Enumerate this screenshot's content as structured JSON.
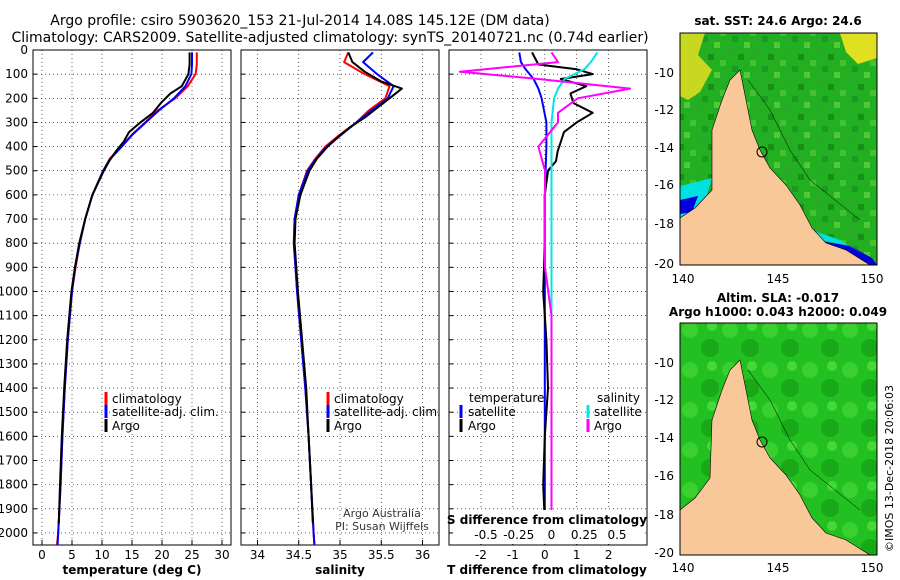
{
  "header": {
    "title_line1": "Argo profile: csiro 5903620_153 21-Jul-2014 14.08S 145.12E (DM data)",
    "title_line2": "Climatology: CARS2009. Satellite-adjusted climatology: synTS_20140721.nc (0.74d earlier)"
  },
  "colors": {
    "climatology": "#ff0000",
    "satellite": "#0000ff",
    "argo": "#000000",
    "sal_satellite": "#00e5e5",
    "sal_argo": "#ff00ff",
    "land": "#f8c898",
    "ocean": "#22b022"
  },
  "depth_axis": {
    "ylim": [
      0,
      2050
    ],
    "ticks": [
      0,
      100,
      200,
      300,
      400,
      500,
      600,
      700,
      800,
      900,
      1000,
      1100,
      1200,
      1300,
      1400,
      1500,
      1600,
      1700,
      1800,
      1900,
      2000
    ],
    "tick_labels": [
      "0",
      "100",
      "200",
      "300",
      "400",
      "500",
      "600",
      "700",
      "800",
      "900",
      "1000",
      "1100",
      "1200",
      "1300",
      "1400",
      "1500",
      "1600",
      "1700",
      "1800",
      "1900",
      "2000"
    ]
  },
  "chart_data": [
    {
      "type": "line",
      "id": "temperature",
      "xlabel": "temperature (deg C)",
      "xlim": [
        -1.5,
        31.5
      ],
      "xticks": [
        0,
        5,
        10,
        15,
        20,
        25,
        30
      ],
      "xtick_labels": [
        "0",
        "5",
        "10",
        "15",
        "20",
        "25",
        "30"
      ],
      "legend": [
        "climatology",
        "satellite-adj. clim.",
        "Argo"
      ],
      "series": [
        {
          "name": "climatology",
          "color": "#ff0000",
          "depth": [
            10,
            60,
            100,
            150,
            200,
            250,
            300,
            350,
            400,
            450,
            500,
            600,
            700,
            800,
            900,
            1000,
            1200,
            1400,
            1600,
            1800,
            2000,
            2050
          ],
          "values": [
            25.8,
            25.8,
            25.6,
            24.3,
            22.2,
            19.3,
            17.2,
            15.0,
            13.2,
            11.3,
            10.2,
            8.4,
            7.2,
            6.3,
            5.6,
            5.0,
            4.3,
            3.8,
            3.4,
            3.1,
            2.7,
            2.5
          ]
        },
        {
          "name": "satellite-adj. clim.",
          "color": "#0000ff",
          "depth": [
            10,
            60,
            100,
            150,
            200,
            250,
            300,
            350,
            400,
            450,
            500,
            600,
            700,
            800,
            900,
            1000,
            1200,
            1400,
            1600,
            1800,
            2000,
            2050
          ],
          "values": [
            25.0,
            25.0,
            24.9,
            23.9,
            22.0,
            19.5,
            17.3,
            15.1,
            13.3,
            11.4,
            10.2,
            8.4,
            7.2,
            6.3,
            5.5,
            5.0,
            4.3,
            3.8,
            3.4,
            3.1,
            2.7,
            2.6
          ]
        },
        {
          "name": "Argo",
          "color": "#000000",
          "depth": [
            10,
            60,
            100,
            150,
            180,
            220,
            260,
            300,
            340,
            380,
            420,
            460,
            500,
            600,
            700,
            800,
            900,
            1000,
            1200,
            1400,
            1600,
            1800,
            1960
          ],
          "values": [
            24.6,
            24.6,
            24.4,
            23.3,
            21.4,
            19.8,
            18.5,
            16.4,
            14.5,
            13.6,
            12.3,
            11.2,
            10.3,
            8.4,
            7.2,
            6.2,
            5.5,
            4.9,
            4.2,
            3.7,
            3.3,
            3.0,
            2.8
          ]
        }
      ]
    },
    {
      "type": "line",
      "id": "salinity",
      "xlabel": "salinity",
      "xlim": [
        33.8,
        36.2
      ],
      "xticks": [
        34,
        34.5,
        35,
        35.5,
        36
      ],
      "xtick_labels": [
        "34",
        "34.5",
        "35",
        "35.5",
        "36"
      ],
      "legend": [
        "climatology",
        "satellite-adj. clim.",
        "Argo"
      ],
      "annotation": [
        "Argo Australia",
        "PI: Susan Wijffels"
      ],
      "series": [
        {
          "name": "climatology",
          "color": "#ff0000",
          "depth": [
            10,
            50,
            100,
            150,
            200,
            250,
            300,
            350,
            400,
            450,
            500,
            600,
            700,
            800,
            900,
            1000,
            1200,
            1400,
            1600,
            1800,
            2000,
            2050
          ],
          "values": [
            35.1,
            35.05,
            35.3,
            35.6,
            35.55,
            35.35,
            35.2,
            35.0,
            34.82,
            34.7,
            34.6,
            34.5,
            34.45,
            34.44,
            34.46,
            34.48,
            34.53,
            34.58,
            34.62,
            34.65,
            34.68,
            34.69
          ]
        },
        {
          "name": "satellite-adj. clim.",
          "color": "#0000ff",
          "depth": [
            10,
            50,
            100,
            150,
            200,
            250,
            300,
            350,
            400,
            450,
            500,
            600,
            700,
            800,
            900,
            1000,
            1200,
            1400,
            1600,
            1800,
            2000,
            2050
          ],
          "values": [
            35.4,
            35.28,
            35.45,
            35.65,
            35.58,
            35.38,
            35.2,
            35.02,
            34.84,
            34.71,
            34.61,
            34.5,
            34.45,
            34.44,
            34.46,
            34.48,
            34.53,
            34.58,
            34.62,
            34.65,
            34.68,
            34.69
          ]
        },
        {
          "name": "Argo",
          "color": "#000000",
          "depth": [
            10,
            50,
            90,
            130,
            160,
            200,
            240,
            280,
            320,
            360,
            400,
            450,
            500,
            600,
            700,
            800,
            900,
            1000,
            1200,
            1400,
            1600,
            1800,
            1960
          ],
          "values": [
            35.1,
            35.15,
            35.3,
            35.5,
            35.75,
            35.6,
            35.45,
            35.3,
            35.12,
            34.98,
            34.85,
            34.72,
            34.63,
            34.52,
            34.46,
            34.45,
            34.47,
            34.49,
            34.54,
            34.59,
            34.62,
            34.65,
            34.67
          ]
        }
      ]
    },
    {
      "type": "line",
      "id": "differences",
      "xlabel": "T difference from climatology",
      "xlim": [
        -3.0,
        3.2
      ],
      "xticks": [
        -2,
        -1,
        0,
        1,
        2
      ],
      "xtick_labels": [
        "-2",
        "-1",
        "0",
        "1",
        "2"
      ],
      "top_axis_label": "S difference from climatology",
      "s_ticks": [
        -0.5,
        -0.25,
        0,
        0.25,
        0.5
      ],
      "s_tick_labels": [
        "-0.5",
        "-0.25",
        "0",
        "0.25",
        "0.5"
      ],
      "legend_left_title": "temperature",
      "legend_left": [
        "satellite",
        "Argo"
      ],
      "legend_right_title": "salinity",
      "legend_right": [
        "satellite",
        "Argo"
      ],
      "series": [
        {
          "name": "T satellite",
          "color": "#0000ff",
          "depth": [
            10,
            50,
            80,
            120,
            160,
            200,
            300,
            400,
            600,
            800,
            1000,
            1500,
            2000
          ],
          "values": [
            -0.8,
            -0.75,
            -0.6,
            -0.35,
            -0.2,
            -0.1,
            0.05,
            0.05,
            0.0,
            0.0,
            0.0,
            0.0,
            0.0
          ]
        },
        {
          "name": "T Argo",
          "color": "#000000",
          "depth": [
            10,
            60,
            80,
            100,
            120,
            150,
            180,
            220,
            260,
            300,
            340,
            380,
            420,
            460,
            500,
            600,
            800,
            1000,
            1200,
            1400,
            1600,
            1800,
            1960
          ],
          "values": [
            -0.4,
            -0.2,
            1.0,
            1.5,
            0.5,
            1.3,
            0.8,
            0.9,
            1.5,
            1.0,
            0.6,
            0.5,
            0.4,
            0.35,
            0.1,
            0.0,
            0.0,
            -0.05,
            0.05,
            0.1,
            0.0,
            -0.05,
            0.0
          ]
        },
        {
          "name": "S satellite",
          "color": "#00e5e5",
          "depth": [
            10,
            50,
            80,
            120,
            160,
            200,
            300,
            400,
            600,
            800,
            1000,
            1500,
            2000
          ],
          "values": [
            0.35,
            0.3,
            0.25,
            0.1,
            0.05,
            0.02,
            0.0,
            0.0,
            0.0,
            0.0,
            0.0,
            0.0,
            0.0
          ]
        },
        {
          "name": "S Argo",
          "color": "#ff00ff",
          "depth": [
            10,
            50,
            90,
            120,
            160,
            200,
            260,
            300,
            400,
            500,
            700,
            900,
            1100,
            1300,
            1500,
            1700,
            1900,
            2000
          ],
          "values": [
            0.0,
            0.05,
            -0.7,
            -0.1,
            0.6,
            0.2,
            0.05,
            0.05,
            -0.1,
            -0.05,
            -0.05,
            -0.05,
            0.0,
            0.0,
            0.0,
            0.0,
            0.0,
            0.0
          ]
        }
      ]
    }
  ],
  "maps": {
    "sst": {
      "title": "sat. SST: 24.6 Argo: 24.6",
      "lat_ticks": [
        "-10",
        "-12",
        "-14",
        "-16",
        "-18",
        "-20"
      ],
      "lon_ticks": [
        "140",
        "145",
        "150"
      ]
    },
    "sla": {
      "title_line1": "Altim. SLA: -0.017",
      "title_line2": "Argo h1000: 0.043 h2000: 0.049",
      "lat_ticks": [
        "-10",
        "-12",
        "-14",
        "-16",
        "-18",
        "-20"
      ],
      "lon_ticks": [
        "140",
        "145",
        "150"
      ]
    }
  },
  "footer": {
    "credit": "©IMOS 13-Dec-2018 20:06:03"
  }
}
